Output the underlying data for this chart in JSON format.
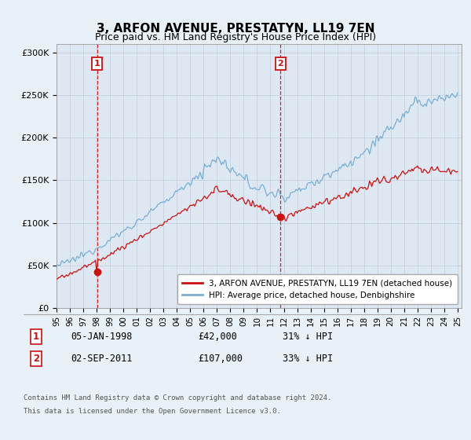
{
  "title": "3, ARFON AVENUE, PRESTATYN, LL19 7EN",
  "subtitle": "Price paid vs. HM Land Registry's House Price Index (HPI)",
  "ylim": [
    0,
    310000
  ],
  "yticks": [
    0,
    50000,
    100000,
    150000,
    200000,
    250000,
    300000
  ],
  "ytick_labels": [
    "£0",
    "£50K",
    "£100K",
    "£150K",
    "£200K",
    "£250K",
    "£300K"
  ],
  "hpi_color": "#7aafd4",
  "price_color": "#cc1111",
  "vline_color": "#cc1111",
  "purchase1_year": 1998.04,
  "purchase1_price": 42000,
  "purchase2_year": 2011.75,
  "purchase2_price": 107000,
  "legend_line1": "3, ARFON AVENUE, PRESTATYN, LL19 7EN (detached house)",
  "legend_line2": "HPI: Average price, detached house, Denbighshire",
  "purchase1_date": "05-JAN-1998",
  "purchase1_amount": "£42,000",
  "purchase1_hpi": "31% ↓ HPI",
  "purchase2_date": "02-SEP-2011",
  "purchase2_amount": "£107,000",
  "purchase2_hpi": "33% ↓ HPI",
  "footer_line1": "Contains HM Land Registry data © Crown copyright and database right 2024.",
  "footer_line2": "This data is licensed under the Open Government Licence v3.0.",
  "bg_color": "#e8f0f8",
  "plot_bg": "#dde8f3",
  "grid_color": "#c0ccda"
}
